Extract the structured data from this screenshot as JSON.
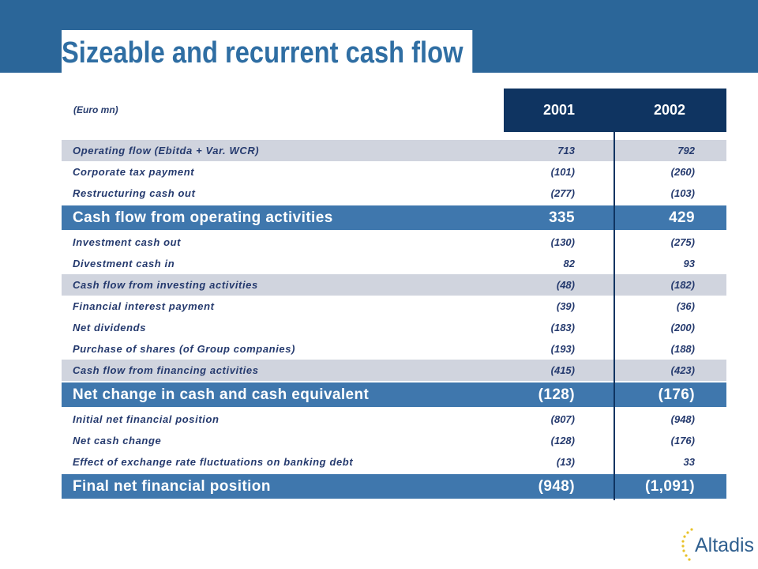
{
  "slide": {
    "title": "Sizeable and recurrent cash flow",
    "units": "(Euro mn)"
  },
  "columns": [
    "2001",
    "2002"
  ],
  "rows": [
    {
      "label": "Operating flow (Ebitda + Var. WCR)",
      "v2001": "713",
      "v2002": "792",
      "style": "shade"
    },
    {
      "label": "Corporate tax payment",
      "v2001": "(101)",
      "v2002": "(260)",
      "style": "plain"
    },
    {
      "label": "Restructuring cash out",
      "v2001": "(277)",
      "v2002": "(103)",
      "style": "plain"
    },
    {
      "label": "Cash flow from operating activities",
      "v2001": "335",
      "v2002": "429",
      "style": "major"
    },
    {
      "label": "Investment cash out",
      "v2001": "(130)",
      "v2002": "(275)",
      "style": "plain"
    },
    {
      "label": "Divestment cash in",
      "v2001": "82",
      "v2002": "93",
      "style": "plain"
    },
    {
      "label": "Cash flow from investing activities",
      "v2001": "(48)",
      "v2002": "(182)",
      "style": "shade"
    },
    {
      "label": "Financial interest payment",
      "v2001": "(39)",
      "v2002": "(36)",
      "style": "plain"
    },
    {
      "label": "Net dividends",
      "v2001": "(183)",
      "v2002": "(200)",
      "style": "plain"
    },
    {
      "label": "Purchase of shares (of Group companies)",
      "v2001": "(193)",
      "v2002": "(188)",
      "style": "plain"
    },
    {
      "label": "Cash flow from financing activities",
      "v2001": "(415)",
      "v2002": "(423)",
      "style": "shade"
    },
    {
      "label": "Net change in cash and cash equivalent",
      "v2001": "(128)",
      "v2002": "(176)",
      "style": "major"
    },
    {
      "label": "Initial net financial position",
      "v2001": "(807)",
      "v2002": "(948)",
      "style": "plain"
    },
    {
      "label": "Net cash change",
      "v2001": "(128)",
      "v2002": "(176)",
      "style": "plain"
    },
    {
      "label": "Effect of exchange rate fluctuations on banking debt",
      "v2001": "(13)",
      "v2002": "33",
      "style": "plain"
    },
    {
      "label": "Final net financial position",
      "v2001": "(948)",
      "v2002": "(1,091)",
      "style": "major"
    }
  ],
  "logo": {
    "text": "Altadis",
    "icon": "star-arc-icon"
  },
  "colors": {
    "header": "#2b6699",
    "title": "#2f6ea3",
    "dark": "#0f3461",
    "major_row": "#3f77ad",
    "shade_row": "#d0d4de",
    "star": "#e8c22a"
  }
}
